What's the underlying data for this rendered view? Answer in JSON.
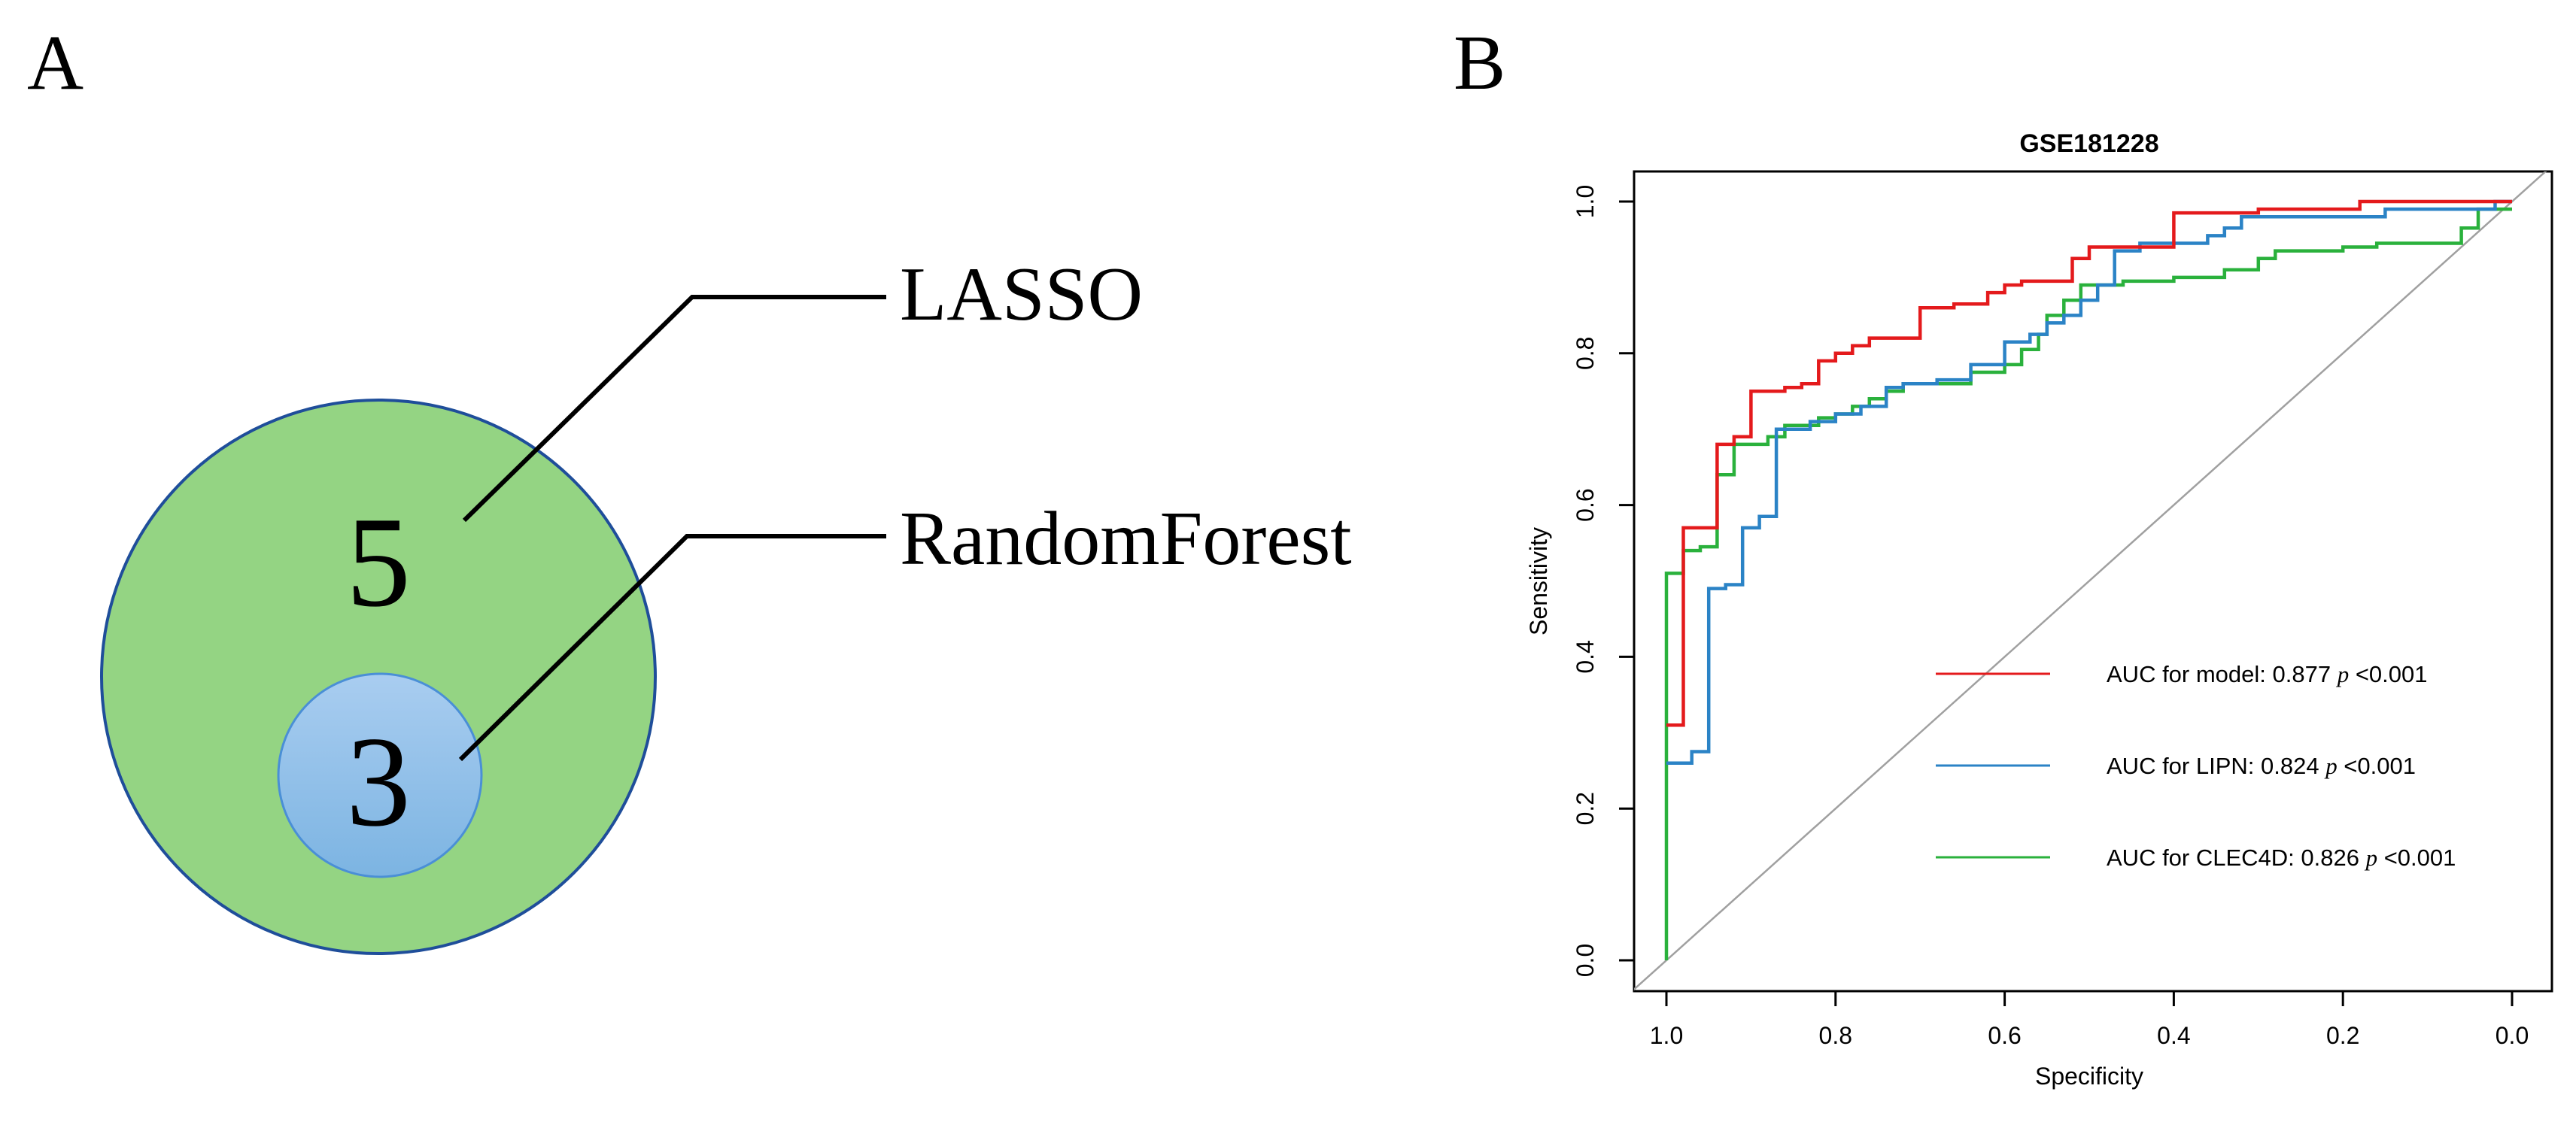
{
  "panel_a": {
    "label": "A",
    "sets": {
      "outer": {
        "name": "LASSO",
        "count": "5",
        "fill": "#94d483",
        "stroke": "#1f4e9a"
      },
      "inner": {
        "name": "RandomForest",
        "count": "3",
        "fill_top": "#a9cdf0",
        "fill_bottom": "#7cb4e2",
        "stroke": "#4a8fd6"
      }
    }
  },
  "panel_b": {
    "label": "B",
    "legend_p_symbol": "p",
    "chart_data": {
      "type": "line",
      "title": "GSE181228",
      "xlabel": "Specificity",
      "ylabel": "Sensitivity",
      "xlim": [
        1.0,
        0.0
      ],
      "ylim": [
        0.0,
        1.0
      ],
      "x_ticks": [
        1.0,
        0.8,
        0.6,
        0.4,
        0.2,
        0.0
      ],
      "x_tick_labels": [
        "1.0",
        "0.8",
        "0.6",
        "0.4",
        "0.2",
        "0.0"
      ],
      "y_ticks": [
        0.0,
        0.2,
        0.4,
        0.6,
        0.8,
        1.0
      ],
      "y_tick_labels": [
        "0.0",
        "0.2",
        "0.4",
        "0.6",
        "0.8",
        "1.0"
      ],
      "reference_line": {
        "from": [
          1.0,
          0.0
        ],
        "to": [
          0.0,
          1.0
        ],
        "color": "#a0a0a0"
      },
      "legend_position": "bottom-right",
      "series": [
        {
          "name": "model",
          "label": "AUC for model: 0.877",
          "p_text": "<0.001",
          "auc": 0.877,
          "color": "#e41a1c",
          "points": [
            [
              1.0,
              0.31
            ],
            [
              0.98,
              0.31
            ],
            [
              0.98,
              0.57
            ],
            [
              0.94,
              0.57
            ],
            [
              0.94,
              0.68
            ],
            [
              0.92,
              0.68
            ],
            [
              0.92,
              0.69
            ],
            [
              0.9,
              0.69
            ],
            [
              0.9,
              0.75
            ],
            [
              0.86,
              0.75
            ],
            [
              0.86,
              0.755
            ],
            [
              0.84,
              0.755
            ],
            [
              0.84,
              0.76
            ],
            [
              0.82,
              0.76
            ],
            [
              0.82,
              0.79
            ],
            [
              0.8,
              0.79
            ],
            [
              0.8,
              0.8
            ],
            [
              0.78,
              0.8
            ],
            [
              0.78,
              0.81
            ],
            [
              0.76,
              0.81
            ],
            [
              0.76,
              0.82
            ],
            [
              0.7,
              0.82
            ],
            [
              0.7,
              0.86
            ],
            [
              0.66,
              0.86
            ],
            [
              0.66,
              0.865
            ],
            [
              0.62,
              0.865
            ],
            [
              0.62,
              0.88
            ],
            [
              0.6,
              0.88
            ],
            [
              0.6,
              0.89
            ],
            [
              0.58,
              0.89
            ],
            [
              0.58,
              0.895
            ],
            [
              0.52,
              0.895
            ],
            [
              0.52,
              0.925
            ],
            [
              0.5,
              0.925
            ],
            [
              0.5,
              0.94
            ],
            [
              0.4,
              0.94
            ],
            [
              0.4,
              0.985
            ],
            [
              0.3,
              0.985
            ],
            [
              0.3,
              0.99
            ],
            [
              0.18,
              0.99
            ],
            [
              0.18,
              1.0
            ],
            [
              0.0,
              1.0
            ]
          ]
        },
        {
          "name": "LIPN",
          "label": "AUC for LIPN: 0.824",
          "p_text": "<0.001",
          "auc": 0.824,
          "color": "#2b83c6",
          "points": [
            [
              1.0,
              0.26
            ],
            [
              0.97,
              0.26
            ],
            [
              0.97,
              0.275
            ],
            [
              0.95,
              0.275
            ],
            [
              0.95,
              0.49
            ],
            [
              0.93,
              0.49
            ],
            [
              0.93,
              0.495
            ],
            [
              0.91,
              0.495
            ],
            [
              0.91,
              0.57
            ],
            [
              0.89,
              0.57
            ],
            [
              0.89,
              0.585
            ],
            [
              0.87,
              0.585
            ],
            [
              0.87,
              0.7
            ],
            [
              0.83,
              0.7
            ],
            [
              0.83,
              0.71
            ],
            [
              0.8,
              0.71
            ],
            [
              0.8,
              0.72
            ],
            [
              0.77,
              0.72
            ],
            [
              0.77,
              0.73
            ],
            [
              0.74,
              0.73
            ],
            [
              0.74,
              0.755
            ],
            [
              0.72,
              0.755
            ],
            [
              0.72,
              0.76
            ],
            [
              0.68,
              0.76
            ],
            [
              0.68,
              0.765
            ],
            [
              0.64,
              0.765
            ],
            [
              0.64,
              0.785
            ],
            [
              0.6,
              0.785
            ],
            [
              0.6,
              0.815
            ],
            [
              0.57,
              0.815
            ],
            [
              0.57,
              0.825
            ],
            [
              0.55,
              0.825
            ],
            [
              0.55,
              0.84
            ],
            [
              0.53,
              0.84
            ],
            [
              0.53,
              0.85
            ],
            [
              0.51,
              0.85
            ],
            [
              0.51,
              0.87
            ],
            [
              0.49,
              0.87
            ],
            [
              0.49,
              0.89
            ],
            [
              0.47,
              0.89
            ],
            [
              0.47,
              0.935
            ],
            [
              0.44,
              0.935
            ],
            [
              0.44,
              0.945
            ],
            [
              0.36,
              0.945
            ],
            [
              0.36,
              0.955
            ],
            [
              0.34,
              0.955
            ],
            [
              0.34,
              0.965
            ],
            [
              0.32,
              0.965
            ],
            [
              0.32,
              0.98
            ],
            [
              0.15,
              0.98
            ],
            [
              0.15,
              0.99
            ],
            [
              0.02,
              0.99
            ],
            [
              0.02,
              1.0
            ],
            [
              0.0,
              1.0
            ]
          ]
        },
        {
          "name": "CLEC4D",
          "label": "AUC for CLEC4D: 0.826",
          "p_text": "<0.001",
          "auc": 0.826,
          "color": "#2ab13c",
          "points": [
            [
              1.0,
              0.0
            ],
            [
              1.0,
              0.51
            ],
            [
              0.98,
              0.51
            ],
            [
              0.98,
              0.54
            ],
            [
              0.96,
              0.54
            ],
            [
              0.96,
              0.545
            ],
            [
              0.94,
              0.545
            ],
            [
              0.94,
              0.64
            ],
            [
              0.92,
              0.64
            ],
            [
              0.92,
              0.68
            ],
            [
              0.88,
              0.68
            ],
            [
              0.88,
              0.69
            ],
            [
              0.86,
              0.69
            ],
            [
              0.86,
              0.705
            ],
            [
              0.82,
              0.705
            ],
            [
              0.82,
              0.715
            ],
            [
              0.8,
              0.715
            ],
            [
              0.8,
              0.72
            ],
            [
              0.78,
              0.72
            ],
            [
              0.78,
              0.73
            ],
            [
              0.76,
              0.73
            ],
            [
              0.76,
              0.74
            ],
            [
              0.74,
              0.74
            ],
            [
              0.74,
              0.75
            ],
            [
              0.72,
              0.75
            ],
            [
              0.72,
              0.76
            ],
            [
              0.64,
              0.76
            ],
            [
              0.64,
              0.775
            ],
            [
              0.6,
              0.775
            ],
            [
              0.6,
              0.785
            ],
            [
              0.58,
              0.785
            ],
            [
              0.58,
              0.805
            ],
            [
              0.56,
              0.805
            ],
            [
              0.56,
              0.825
            ],
            [
              0.55,
              0.825
            ],
            [
              0.55,
              0.85
            ],
            [
              0.53,
              0.85
            ],
            [
              0.53,
              0.87
            ],
            [
              0.51,
              0.87
            ],
            [
              0.51,
              0.89
            ],
            [
              0.46,
              0.89
            ],
            [
              0.46,
              0.895
            ],
            [
              0.4,
              0.895
            ],
            [
              0.4,
              0.9
            ],
            [
              0.34,
              0.9
            ],
            [
              0.34,
              0.91
            ],
            [
              0.3,
              0.91
            ],
            [
              0.3,
              0.925
            ],
            [
              0.28,
              0.925
            ],
            [
              0.28,
              0.935
            ],
            [
              0.2,
              0.935
            ],
            [
              0.2,
              0.94
            ],
            [
              0.16,
              0.94
            ],
            [
              0.16,
              0.945
            ],
            [
              0.06,
              0.945
            ],
            [
              0.06,
              0.965
            ],
            [
              0.04,
              0.965
            ],
            [
              0.04,
              0.99
            ],
            [
              0.0,
              0.99
            ]
          ]
        }
      ]
    }
  }
}
